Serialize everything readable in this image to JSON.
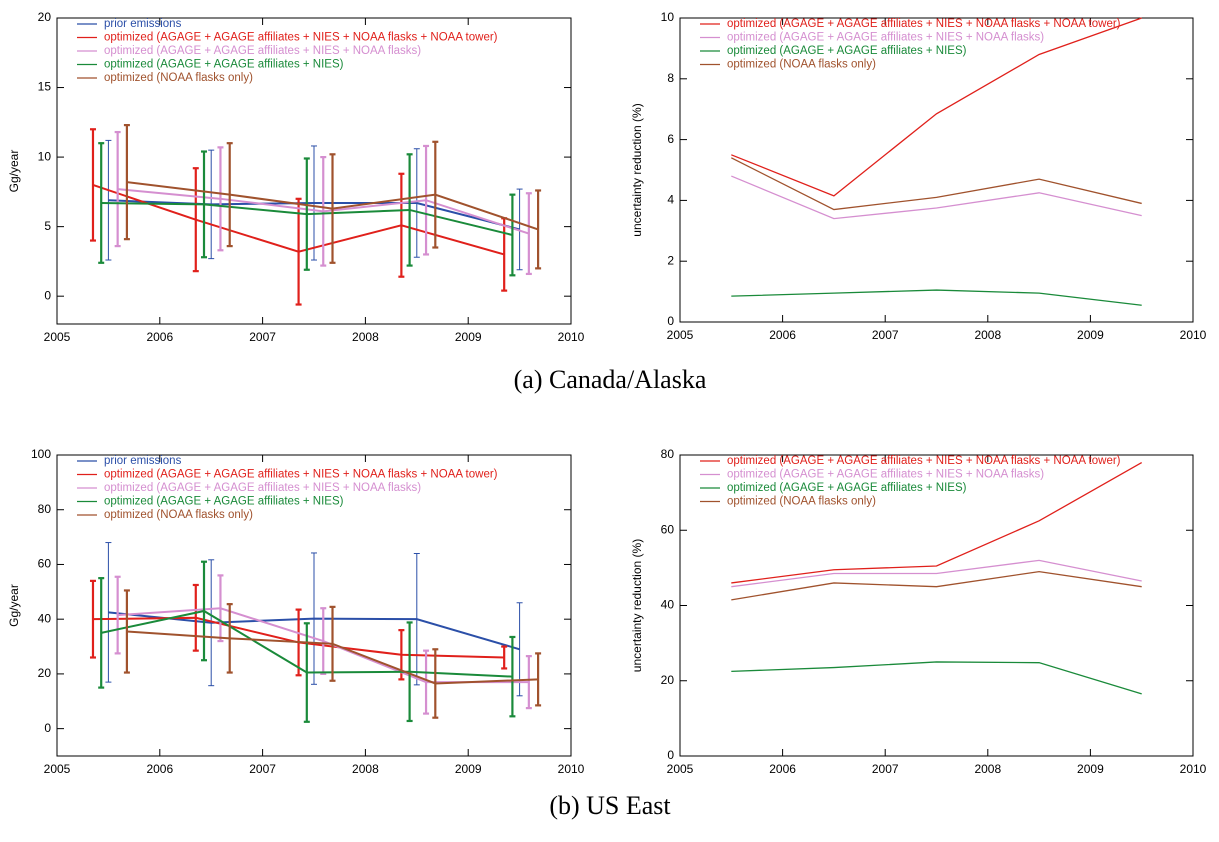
{
  "captions": [
    "(a) Canada/Alaska",
    "(b) US East"
  ],
  "chart_data": [
    {
      "type": "line",
      "y_label": "Gg/year",
      "xlim": [
        2005,
        2010
      ],
      "xticks": [
        2005,
        2006,
        2007,
        2008,
        2009,
        2010
      ],
      "ylim": [
        -2,
        20
      ],
      "yticks": [
        0,
        5,
        10,
        15,
        20
      ],
      "series": [
        {
          "name": "prior emissions",
          "color": "#2b4fa8",
          "x": [
            2005.5,
            2006.5,
            2007.5,
            2008.5,
            2009.5
          ],
          "values": [
            6.9,
            6.6,
            6.7,
            6.7,
            4.8
          ],
          "errors": [
            4.3,
            3.9,
            4.1,
            3.9,
            2.9
          ]
        },
        {
          "name": "optimized (AGAGE + AGAGE affiliates + NIES + NOAA flasks + NOAA tower)",
          "color": "#e0201b",
          "x": [
            2005.35,
            2006.35,
            2007.35,
            2008.35,
            2009.35
          ],
          "values": [
            8.0,
            5.5,
            3.2,
            5.1,
            3.0
          ],
          "errors": [
            4.0,
            3.7,
            3.8,
            3.7,
            2.6
          ]
        },
        {
          "name": "optimized (AGAGE + AGAGE affiliates + NIES + NOAA flasks)",
          "color": "#d58fd0",
          "x": [
            2005.59,
            2006.59,
            2007.59,
            2008.59,
            2009.59
          ],
          "values": [
            7.7,
            7.0,
            6.1,
            6.9,
            4.5
          ],
          "errors": [
            4.1,
            3.7,
            3.9,
            3.9,
            2.9
          ]
        },
        {
          "name": "optimized (AGAGE + AGAGE affiliates + NIES)",
          "color": "#1a8a3a",
          "x": [
            2005.43,
            2006.43,
            2007.43,
            2008.43,
            2009.43
          ],
          "values": [
            6.7,
            6.6,
            5.9,
            6.2,
            4.4
          ],
          "errors": [
            4.3,
            3.8,
            4.0,
            4.0,
            2.9
          ]
        },
        {
          "name": "optimized (NOAA flasks only)",
          "color": "#a0522d",
          "x": [
            2005.68,
            2006.68,
            2007.68,
            2008.68,
            2009.68
          ],
          "values": [
            8.2,
            7.3,
            6.3,
            7.3,
            4.8
          ],
          "errors": [
            4.1,
            3.7,
            3.9,
            3.8,
            2.8
          ]
        }
      ]
    },
    {
      "type": "line",
      "y_label": "uncertainty reduction (%)",
      "xlim": [
        2005,
        2010
      ],
      "xticks": [
        2005,
        2006,
        2007,
        2008,
        2009,
        2010
      ],
      "ylim": [
        0,
        10
      ],
      "yticks": [
        0,
        2,
        4,
        6,
        8,
        10
      ],
      "x": [
        2005.5,
        2006.5,
        2007.5,
        2008.5,
        2009.5
      ],
      "series": [
        {
          "name": "optimized (AGAGE + AGAGE affiliates + NIES + NOAA flasks + NOAA tower)",
          "color": "#e0201b",
          "values": [
            5.5,
            4.15,
            6.85,
            8.8,
            10.0
          ]
        },
        {
          "name": "optimized (AGAGE + AGAGE affiliates + NIES + NOAA flasks)",
          "color": "#d58fd0",
          "values": [
            4.8,
            3.4,
            3.75,
            4.25,
            3.5
          ]
        },
        {
          "name": "optimized (AGAGE + AGAGE affiliates + NIES)",
          "color": "#1a8a3a",
          "values": [
            0.85,
            0.95,
            1.05,
            0.95,
            0.55
          ]
        },
        {
          "name": "optimized (NOAA flasks only)",
          "color": "#a0522d",
          "values": [
            5.4,
            3.7,
            4.1,
            4.7,
            3.9
          ]
        }
      ]
    },
    {
      "type": "line",
      "y_label": "Gg/year",
      "xlim": [
        2005,
        2010
      ],
      "xticks": [
        2005,
        2006,
        2007,
        2008,
        2009,
        2010
      ],
      "ylim": [
        -10,
        100
      ],
      "yticks": [
        0,
        20,
        40,
        60,
        80,
        100
      ],
      "series": [
        {
          "name": "prior emissions",
          "color": "#2b4fa8",
          "x": [
            2005.5,
            2006.5,
            2007.5,
            2008.5,
            2009.5
          ],
          "values": [
            42.5,
            38.7,
            40.2,
            40,
            29
          ],
          "errors": [
            25.5,
            23,
            24,
            24,
            17
          ]
        },
        {
          "name": "optimized (AGAGE + AGAGE affiliates + NIES + NOAA flasks + NOAA tower)",
          "color": "#e0201b",
          "x": [
            2005.35,
            2006.35,
            2007.35,
            2008.35,
            2009.35
          ],
          "values": [
            40,
            40.5,
            31.5,
            27,
            26
          ],
          "errors": [
            14,
            12,
            12,
            9,
            4
          ]
        },
        {
          "name": "optimized (AGAGE + AGAGE affiliates + NIES + NOAA flasks)",
          "color": "#d58fd0",
          "x": [
            2005.59,
            2006.59,
            2007.59,
            2008.59,
            2009.59
          ],
          "values": [
            41.5,
            44,
            32,
            17,
            17
          ],
          "errors": [
            14,
            12,
            12,
            11.5,
            9.5
          ]
        },
        {
          "name": "optimized (AGAGE + AGAGE affiliates + NIES)",
          "color": "#1a8a3a",
          "x": [
            2005.43,
            2006.43,
            2007.43,
            2008.43,
            2009.43
          ],
          "values": [
            35,
            43,
            20.5,
            20.8,
            19
          ],
          "errors": [
            20,
            18,
            18,
            18,
            14.5
          ]
        },
        {
          "name": "optimized (NOAA flasks only)",
          "color": "#a0522d",
          "x": [
            2005.68,
            2006.68,
            2007.68,
            2008.68,
            2009.68
          ],
          "values": [
            35.5,
            33,
            31,
            16.5,
            18
          ],
          "errors": [
            15,
            12.5,
            13.5,
            12.5,
            9.5
          ]
        }
      ]
    },
    {
      "type": "line",
      "y_label": "uncertainty reduction (%)",
      "xlim": [
        2005,
        2010
      ],
      "xticks": [
        2005,
        2006,
        2007,
        2008,
        2009,
        2010
      ],
      "ylim": [
        0,
        80
      ],
      "yticks": [
        0,
        20,
        40,
        60,
        80
      ],
      "x": [
        2005.5,
        2006.5,
        2007.5,
        2008.5,
        2009.5
      ],
      "series": [
        {
          "name": "optimized (AGAGE + AGAGE affiliates + NIES + NOAA flasks + NOAA tower)",
          "color": "#e0201b",
          "values": [
            46,
            49.5,
            50.5,
            62.5,
            78
          ]
        },
        {
          "name": "optimized (AGAGE + AGAGE affiliates + NIES + NOAA flasks)",
          "color": "#d58fd0",
          "values": [
            45,
            48.5,
            48.5,
            52,
            46.5
          ]
        },
        {
          "name": "optimized (AGAGE + AGAGE affiliates + NIES)",
          "color": "#1a8a3a",
          "values": [
            22.5,
            23.5,
            25,
            24.8,
            16.5
          ]
        },
        {
          "name": "optimized (NOAA flasks only)",
          "color": "#a0522d",
          "values": [
            41.5,
            46,
            45,
            49,
            45
          ]
        }
      ]
    }
  ]
}
